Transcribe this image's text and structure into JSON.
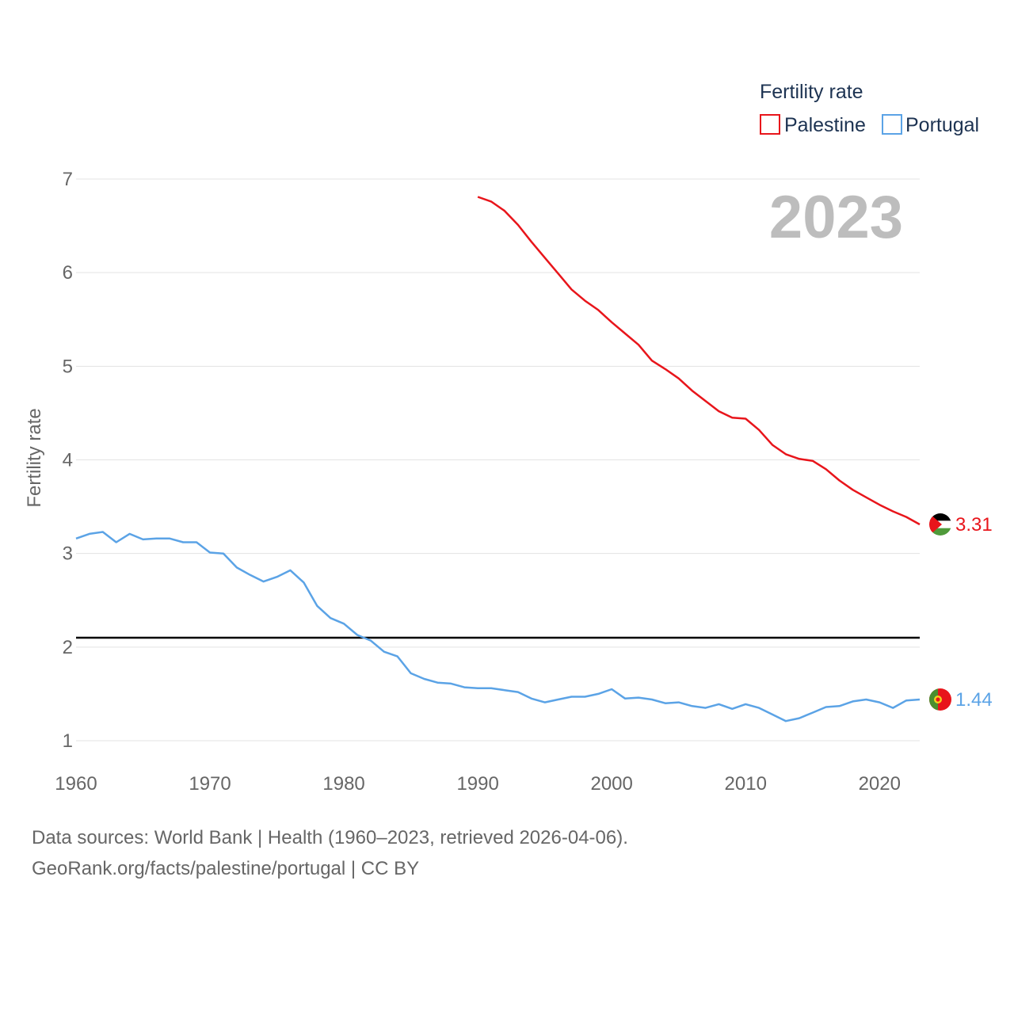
{
  "chart_data": {
    "type": "line",
    "title": "",
    "ylabel": "Fertility rate",
    "xlabel": "",
    "xlim": [
      1960,
      2023
    ],
    "ylim": [
      0.7,
      7.1
    ],
    "x_ticks": [
      1960,
      1970,
      1980,
      1990,
      2000,
      2010,
      2020
    ],
    "y_ticks": [
      1,
      2,
      3,
      4,
      5,
      6,
      7
    ],
    "grid": true,
    "legend": {
      "title": "Fertility rate",
      "position": "top-right"
    },
    "year_label": "2023",
    "reference_line": {
      "value": 2.1,
      "color": "#000000"
    },
    "series": [
      {
        "name": "Palestine",
        "color": "#e8151b",
        "end_label": "3.31",
        "x": [
          1990,
          1991,
          1992,
          1993,
          1994,
          1995,
          1996,
          1997,
          1998,
          1999,
          2000,
          2001,
          2002,
          2003,
          2004,
          2005,
          2006,
          2007,
          2008,
          2009,
          2010,
          2011,
          2012,
          2013,
          2014,
          2015,
          2016,
          2017,
          2018,
          2019,
          2020,
          2021,
          2022,
          2023
        ],
        "values": [
          6.81,
          6.76,
          6.66,
          6.51,
          6.33,
          6.16,
          5.99,
          5.82,
          5.7,
          5.6,
          5.47,
          5.35,
          5.23,
          5.06,
          4.97,
          4.87,
          4.74,
          4.63,
          4.52,
          4.45,
          4.44,
          4.32,
          4.16,
          4.06,
          4.01,
          3.99,
          3.9,
          3.78,
          3.68,
          3.6,
          3.52,
          3.45,
          3.39,
          3.31
        ]
      },
      {
        "name": "Portugal",
        "color": "#5ba3e6",
        "end_label": "1.44",
        "x": [
          1960,
          1961,
          1962,
          1963,
          1964,
          1965,
          1966,
          1967,
          1968,
          1969,
          1970,
          1971,
          1972,
          1973,
          1974,
          1975,
          1976,
          1977,
          1978,
          1979,
          1980,
          1981,
          1982,
          1983,
          1984,
          1985,
          1986,
          1987,
          1988,
          1989,
          1990,
          1991,
          1992,
          1993,
          1994,
          1995,
          1996,
          1997,
          1998,
          1999,
          2000,
          2001,
          2002,
          2003,
          2004,
          2005,
          2006,
          2007,
          2008,
          2009,
          2010,
          2011,
          2012,
          2013,
          2014,
          2015,
          2016,
          2017,
          2018,
          2019,
          2020,
          2021,
          2022,
          2023
        ],
        "values": [
          3.16,
          3.21,
          3.23,
          3.12,
          3.21,
          3.15,
          3.16,
          3.16,
          3.12,
          3.12,
          3.01,
          3.0,
          2.85,
          2.77,
          2.7,
          2.75,
          2.82,
          2.69,
          2.44,
          2.31,
          2.25,
          2.13,
          2.07,
          1.95,
          1.9,
          1.72,
          1.66,
          1.62,
          1.61,
          1.57,
          1.56,
          1.56,
          1.54,
          1.52,
          1.45,
          1.41,
          1.44,
          1.47,
          1.47,
          1.5,
          1.55,
          1.45,
          1.46,
          1.44,
          1.4,
          1.41,
          1.37,
          1.35,
          1.39,
          1.34,
          1.39,
          1.35,
          1.28,
          1.21,
          1.24,
          1.3,
          1.36,
          1.37,
          1.42,
          1.44,
          1.41,
          1.35,
          1.43,
          1.44
        ]
      }
    ]
  },
  "footer": {
    "sources": "Data sources: World Bank | Health (1960–2023, retrieved 2026-04-06).",
    "credit": "GeoRank.org/facts/palestine/portugal | CC BY"
  },
  "flags": {
    "palestine": "palestine-flag",
    "portugal": "portugal-flag"
  }
}
